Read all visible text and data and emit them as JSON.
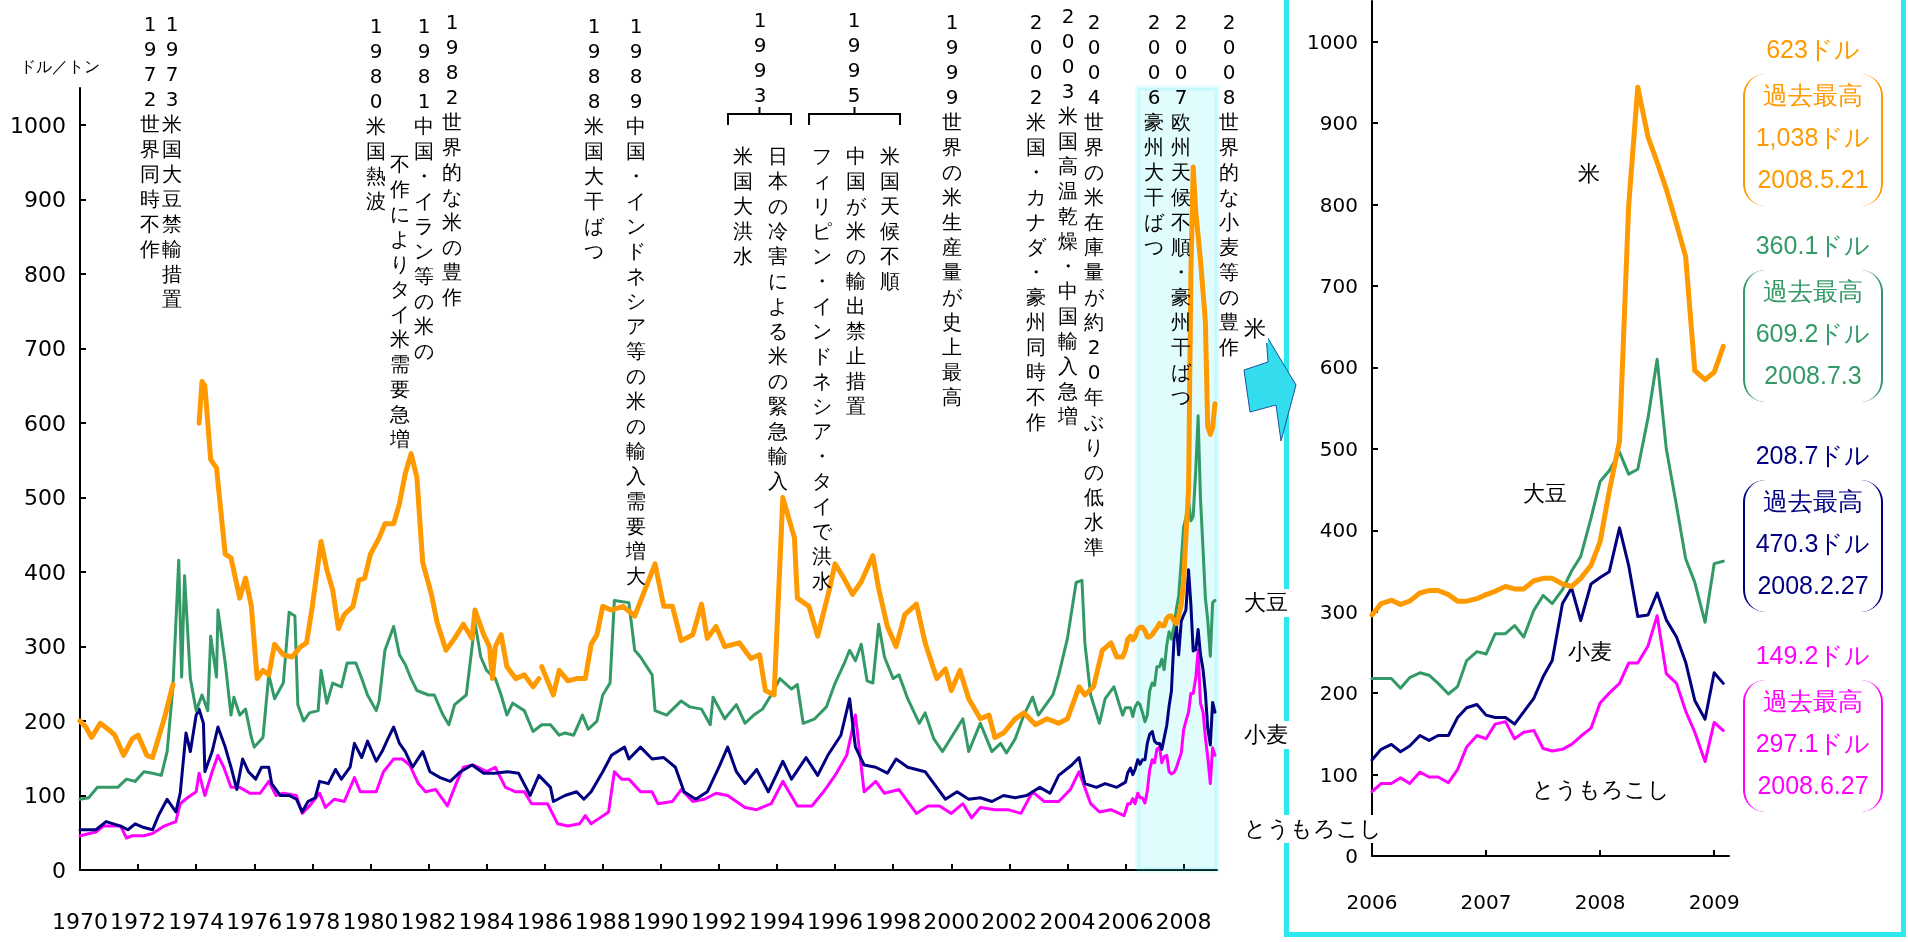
{
  "chart_data": [
    {
      "type": "line",
      "ylabel": "ドル／トン",
      "xlim": [
        1970,
        2009.15
      ],
      "xticks": [
        1970,
        1972,
        1974,
        1976,
        1978,
        1980,
        1982,
        1984,
        1986,
        1988,
        1990,
        1992,
        1994,
        1996,
        1998,
        2000,
        2002,
        2004,
        2006,
        2008
      ],
      "ylim": [
        0,
        1050
      ],
      "yticks": [
        0,
        100,
        200,
        300,
        400,
        500,
        600,
        700,
        800,
        900,
        1000
      ],
      "grid": false,
      "legend": false,
      "marker": "none",
      "line_style": "solid",
      "bands": [
        {
          "axis": "x",
          "from": 2006.42,
          "to": 2009.15,
          "color": "#2ee8f0"
        }
      ],
      "annotations": [
        "1972 世界同時不作",
        "1973 米国大豆禁輸措置",
        "1980 米国熱波",
        "1981 中国・イラン等の米の",
        "不作によりタイ米需要急増",
        "1982 世界的な米の豊作",
        "1988 米国大干ばつ",
        "1989 中国・インドネシア等の米の輸入需要増大",
        "1993",
        "日本の冷害による米の緊急輸入",
        "米国大洪水",
        "1995",
        "米国天候不順",
        "中国が米の輸出禁止措置",
        "フィリピン・インドネシア・タイで洪水",
        "1999 世界の米生産量が史上最高",
        "2002 米国・カナダ・豪州同時不作",
        "2003 米国高温乾燥・中国輸入急増",
        "2004 世界の米在庫量が約20年ぶりの低水準",
        "2006 豪州大干ばつ",
        "2007 欧州天候不順・豪州干ばつ",
        "2008 世界的な小麦等の豊作"
      ],
      "series": [
        {
          "name": "米",
          "color": "#ff9900",
          "x": [
            1970,
            1970.2,
            1970.4,
            1970.7,
            1971,
            1971.2,
            1971.5,
            1971.8,
            1972,
            1972.3,
            1972.5,
            1972.9,
            1973.2,
            1973.6,
            1974.1,
            1974.2,
            1974.3,
            1974.5,
            1974.7,
            1975,
            1975.2,
            1975.5,
            1975.7,
            1975.9,
            1976.1,
            1976.3,
            1976.5,
            1976.7,
            1977,
            1977.3,
            1977.6,
            1977.8,
            1978,
            1978.3,
            1978.5,
            1978.7,
            1978.9,
            1979.1,
            1979.4,
            1979.6,
            1979.8,
            1980,
            1980.3,
            1980.5,
            1980.8,
            1981,
            1981.2,
            1981.4,
            1981.6,
            1981.8,
            1982.1,
            1982.3,
            1982.6,
            1982.9,
            1983.2,
            1983.5,
            1983.6,
            1983.9,
            1984.1,
            1984.2,
            1984.3,
            1984.5,
            1984.7,
            1985,
            1985.3,
            1985.6,
            1985.8,
            1985.85,
            1985.9,
            1986.3,
            1986.5,
            1986.8,
            1987.1,
            1987.4,
            1987.6,
            1987.8,
            1988,
            1988.3,
            1988.7,
            1989.1,
            1989.8,
            1990.1,
            1990.4,
            1990.7,
            1991.1,
            1991.4,
            1991.6,
            1991.9,
            1992.2,
            1992.7,
            1993.1,
            1993.4,
            1993.6,
            1993.9,
            1994.2,
            1994.6,
            1994.7,
            1995.1,
            1995.4,
            1995.8,
            1996,
            1996.3,
            1996.6,
            1996.9,
            1997.3,
            1997.5,
            1997.8,
            1998.1,
            1998.4,
            1998.8,
            1999.1,
            1999.5,
            1999.8,
            2000,
            2000.3,
            2000.6,
            2001,
            2001.3,
            2001.5,
            2001.8,
            2002.2,
            2002.5,
            2002.9,
            2003.3,
            2003.7,
            2004,
            2004.4,
            2004.6,
            2004.9,
            2005.2,
            2005.5,
            2005.7,
            2005.9,
            2006,
            2006.08,
            2006.17,
            2006.25,
            2006.33,
            2006.42,
            2006.5,
            2006.58,
            2006.67,
            2006.75,
            2006.83,
            2006.92,
            2007,
            2007.08,
            2007.17,
            2007.25,
            2007.33,
            2007.42,
            2007.5,
            2007.58,
            2007.67,
            2007.75,
            2007.83,
            2007.92,
            2008,
            2008.08,
            2008.17,
            2008.25,
            2008.33,
            2008.42,
            2008.5,
            2008.58,
            2008.67,
            2008.75,
            2008.83,
            2008.92,
            2009,
            2009.08
          ],
          "values": [
            200,
            192,
            178,
            197,
            188,
            181,
            154,
            176,
            181,
            154,
            151,
            203,
            249,
            null,
            600,
            656,
            650,
            551,
            540,
            424,
            419,
            365,
            392,
            354,
            257,
            268,
            262,
            303,
            289,
            286,
            300,
            305,
            354,
            441,
            403,
            376,
            324,
            343,
            354,
            389,
            392,
            424,
            446,
            465,
            465,
            492,
            532,
            559,
            527,
            413,
            370,
            332,
            295,
            311,
            330,
            311,
            349,
            316,
            300,
            257,
            300,
            316,
            273,
            257,
            262,
            246,
            257,
            null,
            273,
            235,
            268,
            254,
            257,
            257,
            303,
            316,
            354,
            349,
            354,
            341,
            411,
            354,
            354,
            308,
            316,
            357,
            311,
            327,
            300,
            305,
            284,
            289,
            241,
            235,
            500,
            446,
            365,
            354,
            314,
            376,
            411,
            392,
            370,
            387,
            422,
            378,
            327,
            300,
            343,
            357,
            305,
            257,
            270,
            241,
            268,
            230,
            203,
            208,
            178,
            184,
            203,
            211,
            195,
            203,
            197,
            203,
            246,
            235,
            246,
            295,
            305,
            286,
            286,
            296,
            310,
            314,
            309,
            313,
            323,
            326,
            326,
            321,
            313,
            313,
            316,
            321,
            325,
            331,
            328,
            328,
            338,
            341,
            341,
            334,
            331,
            341,
            357,
            386,
            448,
            509,
            798,
            944,
            883,
            852,
            819,
            776,
            736,
            596,
            585,
            594,
            626
          ]
        },
        {
          "name": "大豆",
          "color": "#339966",
          "x": [
            1970,
            1970.3,
            1970.6,
            1971,
            1971.3,
            1971.6,
            1971.9,
            1972.2,
            1972.5,
            1972.8,
            1973,
            1973.2,
            1973.4,
            1973.5,
            1973.6,
            1973.8,
            1974,
            1974.2,
            1974.4,
            1974.5,
            1974.7,
            1974.75,
            1975,
            1975.2,
            1975.3,
            1975.5,
            1975.7,
            1975.9,
            1976,
            1976.3,
            1976.5,
            1976.7,
            1977,
            1977.2,
            1977.4,
            1977.5,
            1977.7,
            1977.9,
            1978.2,
            1978.3,
            1978.5,
            1978.7,
            1979,
            1979.2,
            1979.5,
            1979.7,
            1979.9,
            1980.2,
            1980.3,
            1980.5,
            1980.8,
            1981,
            1981.2,
            1981.4,
            1981.6,
            1982,
            1982.2,
            1982.5,
            1982.7,
            1982.9,
            1983.3,
            1983.6,
            1983.8,
            1984,
            1984.3,
            1984.5,
            1984.7,
            1984.9,
            1985.3,
            1985.6,
            1985.9,
            1986.2,
            1986.5,
            1986.7,
            1987,
            1987.3,
            1987.5,
            1987.8,
            1988,
            1988.25,
            1988.4,
            1988.9,
            1989.1,
            1989.3,
            1989.7,
            1989.8,
            1990.2,
            1990.7,
            1991,
            1991.4,
            1991.7,
            1991.8,
            1992.2,
            1992.6,
            1992.9,
            1993.2,
            1993.5,
            1993.8,
            1994.1,
            1994.5,
            1994.7,
            1994.9,
            1995.3,
            1995.7,
            1996,
            1996.3,
            1996.5,
            1996.7,
            1996.9,
            1997.1,
            1997.3,
            1997.5,
            1997.7,
            1998,
            1998.2,
            1998.5,
            1998.9,
            1999.1,
            1999.4,
            1999.7,
            2000,
            2000.4,
            2000.6,
            2001,
            2001.4,
            2001.7,
            2001.9,
            2002.2,
            2002.5,
            2002.8,
            2003,
            2003.5,
            2003.7,
            2004,
            2004.3,
            2004.5,
            2004.6,
            2004.8,
            2005.1,
            2005.3,
            2005.6,
            2005.9,
            2006,
            2006.08,
            2006.17,
            2006.25,
            2006.33,
            2006.42,
            2006.5,
            2006.58,
            2006.67,
            2006.75,
            2006.83,
            2006.92,
            2007,
            2007.08,
            2007.17,
            2007.25,
            2007.33,
            2007.42,
            2007.5,
            2007.58,
            2007.67,
            2007.75,
            2007.83,
            2007.92,
            2008,
            2008.08,
            2008.17,
            2008.25,
            2008.33,
            2008.42,
            2008.5,
            2008.58,
            2008.67,
            2008.75,
            2008.83,
            2008.92,
            2009,
            2009.08
          ],
          "values": [
            95,
            97,
            111,
            111,
            111,
            122,
            119,
            132,
            130,
            127,
            159,
            246,
            416,
            259,
            395,
            257,
            214,
            235,
            214,
            314,
            259,
            349,
            278,
            208,
            232,
            208,
            216,
            178,
            165,
            178,
            262,
            230,
            251,
            346,
            341,
            222,
            200,
            211,
            214,
            268,
            224,
            251,
            246,
            278,
            278,
            257,
            235,
            214,
            227,
            295,
            327,
            289,
            276,
            257,
            241,
            235,
            235,
            208,
            195,
            222,
            235,
            332,
            286,
            268,
            257,
            235,
            208,
            224,
            214,
            186,
            195,
            195,
            181,
            184,
            181,
            208,
            189,
            200,
            235,
            251,
            362,
            359,
            295,
            286,
            262,
            214,
            208,
            227,
            219,
            216,
            195,
            232,
            203,
            222,
            197,
            208,
            216,
            235,
            257,
            243,
            249,
            197,
            203,
            219,
            251,
            276,
            295,
            281,
            303,
            254,
            251,
            330,
            286,
            257,
            262,
            230,
            197,
            211,
            176,
            159,
            178,
            203,
            159,
            197,
            159,
            170,
            157,
            176,
            208,
            232,
            208,
            235,
            262,
            311,
            386,
            389,
            305,
            235,
            197,
            230,
            246,
            208,
            218,
            218,
            218,
            206,
            219,
            225,
            222,
            212,
            199,
            208,
            240,
            251,
            248,
            273,
            273,
            283,
            269,
            302,
            320,
            310,
            327,
            350,
            368,
            415,
            460,
            473,
            496,
            469,
            475,
            538,
            610,
            500,
            430,
            365,
            336,
            287,
            359,
            362
          ]
        },
        {
          "name": "小麦",
          "color": "#000080",
          "x": [
            1970,
            1970.55,
            1970.9,
            1971.4,
            1971.65,
            1971.9,
            1972.2,
            1972.5,
            1972.7,
            1973,
            1973.3,
            1973.45,
            1973.65,
            1973.8,
            1974,
            1974.1,
            1974.25,
            1974.3,
            1974.55,
            1974.75,
            1975,
            1975.2,
            1975.4,
            1975.6,
            1975.8,
            1976.05,
            1976.25,
            1976.5,
            1976.6,
            1976.9,
            1977.2,
            1977.45,
            1977.65,
            1977.85,
            1978.1,
            1978.25,
            1978.55,
            1978.8,
            1979,
            1979.3,
            1979.45,
            1979.7,
            1979.9,
            1980.2,
            1980.4,
            1980.6,
            1980.8,
            1981,
            1981.2,
            1981.45,
            1981.8,
            1982.05,
            1982.4,
            1982.75,
            1983.1,
            1983.5,
            1983.9,
            1984.3,
            1984.7,
            1985.1,
            1985.5,
            1985.8,
            1986.2,
            1986.3,
            1986.7,
            1987.1,
            1987.35,
            1987.6,
            1988,
            1988.3,
            1988.75,
            1988.9,
            1989.3,
            1989.7,
            1990.1,
            1990.5,
            1990.8,
            1991.2,
            1991.6,
            1992,
            1992.3,
            1992.6,
            1992.9,
            1993.3,
            1993.7,
            1994.2,
            1994.5,
            1995,
            1995.4,
            1995.75,
            1996.2,
            1996.5,
            1996.7,
            1997,
            1997.4,
            1997.8,
            1998.1,
            1998.5,
            1999.1,
            1999.5,
            1999.8,
            2000.2,
            2000.6,
            2001,
            2001.4,
            2001.8,
            2002.2,
            2002.6,
            2003.05,
            2003.4,
            2003.7,
            2004.15,
            2004.4,
            2004.6,
            2005,
            2005.3,
            2005.7,
            2006,
            2006.08,
            2006.17,
            2006.25,
            2006.33,
            2006.42,
            2006.5,
            2006.58,
            2006.67,
            2006.75,
            2006.83,
            2006.92,
            2007,
            2007.08,
            2007.17,
            2007.25,
            2007.33,
            2007.42,
            2007.5,
            2007.58,
            2007.67,
            2007.75,
            2007.83,
            2007.92,
            2008,
            2008.08,
            2008.17,
            2008.25,
            2008.33,
            2008.42,
            2008.5,
            2008.58,
            2008.67,
            2008.75,
            2008.83,
            2008.92,
            2009,
            2009.08
          ],
          "values": [
            54,
            54,
            65,
            59,
            54,
            62,
            57,
            54,
            73,
            95,
            78,
            103,
            184,
            159,
            208,
            216,
            197,
            132,
            159,
            192,
            165,
            138,
            108,
            149,
            132,
            122,
            138,
            138,
            116,
            100,
            100,
            95,
            78,
            92,
            97,
            119,
            116,
            135,
            122,
            138,
            170,
            151,
            173,
            146,
            159,
            176,
            192,
            170,
            159,
            138,
            159,
            132,
            124,
            119,
            132,
            141,
            130,
            130,
            132,
            130,
            100,
            127,
            111,
            92,
            100,
            105,
            95,
            105,
            132,
            154,
            165,
            149,
            165,
            149,
            151,
            138,
            105,
            95,
            105,
            138,
            165,
            132,
            116,
            135,
            105,
            146,
            122,
            151,
            127,
            154,
            181,
            230,
            165,
            141,
            138,
            130,
            149,
            138,
            132,
            111,
            95,
            105,
            95,
            97,
            92,
            100,
            97,
            100,
            111,
            103,
            127,
            141,
            151,
            116,
            111,
            116,
            111,
            118,
            131,
            137,
            128,
            135,
            148,
            142,
            148,
            148,
            170,
            182,
            186,
            173,
            170,
            170,
            162,
            177,
            194,
            220,
            240,
            310,
            329,
            289,
            334,
            342,
            349,
            403,
            357,
            294,
            296,
            323,
            290,
            269,
            238,
            191,
            168,
            225,
            212
          ]
        },
        {
          "name": "とうもろこし",
          "color": "#ff00ff",
          "x": [
            1970,
            1970.55,
            1970.8,
            1971.4,
            1971.6,
            1971.8,
            1972.2,
            1972.5,
            1972.9,
            1973.3,
            1973.45,
            1973.7,
            1974,
            1974.1,
            1974.3,
            1974.55,
            1974.75,
            1974.95,
            1975.2,
            1975.5,
            1975.85,
            1976.2,
            1976.5,
            1976.75,
            1977,
            1977.45,
            1977.65,
            1977.9,
            1978.25,
            1978.45,
            1978.75,
            1979.1,
            1979.45,
            1979.65,
            1979.85,
            1980.2,
            1980.45,
            1980.8,
            1981.1,
            1981.35,
            1981.65,
            1981.9,
            1982.25,
            1982.65,
            1982.95,
            1983.2,
            1983.55,
            1984,
            1984.3,
            1984.65,
            1985,
            1985.3,
            1985.55,
            1986.1,
            1986.45,
            1986.8,
            1987.2,
            1987.4,
            1987.6,
            1987.9,
            1988.2,
            1988.4,
            1988.65,
            1988.9,
            1989.3,
            1989.7,
            1989.9,
            1990.4,
            1990.7,
            1991.1,
            1991.5,
            1991.9,
            1992.3,
            1992.9,
            1993.3,
            1993.8,
            1994.2,
            1994.7,
            1995.2,
            1995.6,
            1996,
            1996.4,
            1996.7,
            1997,
            1997.4,
            1997.7,
            1998.2,
            1998.8,
            1999.2,
            1999.6,
            2000,
            2000.4,
            2000.7,
            2001,
            2001.5,
            2001.95,
            2002.4,
            2002.8,
            2003.2,
            2003.7,
            2004.1,
            2004.4,
            2004.8,
            2005.1,
            2005.5,
            2005.95,
            2006,
            2006.08,
            2006.17,
            2006.25,
            2006.33,
            2006.42,
            2006.5,
            2006.58,
            2006.67,
            2006.75,
            2006.83,
            2006.92,
            2007,
            2007.08,
            2007.17,
            2007.25,
            2007.33,
            2007.42,
            2007.5,
            2007.58,
            2007.67,
            2007.75,
            2007.83,
            2007.92,
            2008,
            2008.08,
            2008.17,
            2008.25,
            2008.33,
            2008.42,
            2008.5,
            2008.58,
            2008.67,
            2008.75,
            2008.83,
            2008.92,
            2009,
            2009.08
          ],
          "values": [
            46,
            51,
            59,
            59,
            43,
            46,
            46,
            49,
            59,
            65,
            89,
            97,
            105,
            130,
            100,
            132,
            154,
            138,
            111,
            111,
            103,
            103,
            119,
            100,
            103,
            100,
            76,
            86,
            103,
            84,
            95,
            92,
            124,
            105,
            105,
            105,
            132,
            149,
            149,
            141,
            116,
            105,
            108,
            86,
            116,
            138,
            141,
            132,
            138,
            111,
            105,
            105,
            89,
            89,
            62,
            59,
            62,
            73,
            62,
            70,
            78,
            132,
            122,
            122,
            105,
            105,
            89,
            92,
            108,
            92,
            95,
            103,
            100,
            84,
            81,
            89,
            119,
            86,
            86,
            105,
            127,
            154,
            208,
            105,
            119,
            103,
            108,
            76,
            86,
            86,
            76,
            89,
            70,
            84,
            81,
            81,
            76,
            105,
            92,
            92,
            108,
            132,
            89,
            78,
            81,
            73,
            79,
            89,
            89,
            96,
            89,
            103,
            97,
            97,
            90,
            106,
            134,
            148,
            144,
            162,
            165,
            144,
            152,
            154,
            132,
            129,
            131,
            137,
            147,
            157,
            188,
            200,
            212,
            237,
            237,
            258,
            295,
            224,
            212,
            178,
            152,
            116,
            164,
            154
          ]
        }
      ]
    },
    {
      "type": "line",
      "xlim": [
        2006,
        2009.13
      ],
      "xticks": [
        2006,
        2007,
        2008,
        2009
      ],
      "ylim": [
        0,
        1050
      ],
      "yticks": [
        0,
        100,
        200,
        300,
        400,
        500,
        600,
        700,
        800,
        900,
        1000
      ],
      "grid": false,
      "legend": false,
      "marker": "none",
      "line_style": "solid",
      "annotations": [
        "623ドル",
        "過去最高",
        "1,038ドル",
        "2008.5.21",
        "360.1ドル",
        "過去最高",
        "609.2ドル",
        "2008.7.3",
        "208.7ドル",
        "過去最高",
        "470.3ドル",
        "2008.2.27",
        "149.2ドル",
        "過去最高",
        "297.1ドル",
        "2008.6.27"
      ],
      "x": [
        2006,
        2006.08,
        2006.17,
        2006.25,
        2006.33,
        2006.42,
        2006.5,
        2006.58,
        2006.67,
        2006.75,
        2006.83,
        2006.92,
        2007,
        2007.08,
        2007.17,
        2007.25,
        2007.33,
        2007.42,
        2007.5,
        2007.58,
        2007.67,
        2007.75,
        2007.83,
        2007.92,
        2008,
        2008.08,
        2008.17,
        2008.25,
        2008.33,
        2008.42,
        2008.5,
        2008.58,
        2008.67,
        2008.75,
        2008.83,
        2008.92,
        2009,
        2009.08
      ],
      "series": [
        {
          "name": "米",
          "color": "#ff9900",
          "values": [
            296,
            310,
            314,
            309,
            313,
            323,
            326,
            326,
            321,
            313,
            313,
            316,
            321,
            325,
            331,
            328,
            328,
            338,
            341,
            341,
            334,
            331,
            341,
            357,
            386,
            448,
            509,
            798,
            944,
            883,
            852,
            819,
            776,
            736,
            596,
            585,
            594,
            626
          ]
        },
        {
          "name": "大豆",
          "color": "#339966",
          "values": [
            218,
            218,
            218,
            206,
            219,
            225,
            222,
            212,
            199,
            208,
            240,
            251,
            248,
            273,
            273,
            283,
            269,
            302,
            320,
            310,
            327,
            350,
            368,
            415,
            460,
            473,
            496,
            469,
            475,
            538,
            610,
            500,
            430,
            365,
            336,
            287,
            359,
            362
          ]
        },
        {
          "name": "小麦",
          "color": "#000080",
          "values": [
            118,
            131,
            137,
            128,
            135,
            148,
            142,
            148,
            148,
            170,
            182,
            186,
            173,
            170,
            170,
            162,
            177,
            194,
            220,
            240,
            310,
            329,
            289,
            334,
            342,
            349,
            403,
            357,
            294,
            296,
            323,
            290,
            269,
            238,
            191,
            168,
            225,
            212
          ]
        },
        {
          "name": "とうもろこし",
          "color": "#ff00ff",
          "values": [
            79,
            89,
            89,
            96,
            89,
            103,
            97,
            97,
            90,
            106,
            134,
            148,
            144,
            162,
            165,
            144,
            152,
            154,
            132,
            129,
            131,
            137,
            147,
            157,
            188,
            200,
            212,
            237,
            237,
            258,
            295,
            224,
            212,
            178,
            152,
            116,
            164,
            154
          ]
        }
      ]
    }
  ]
}
